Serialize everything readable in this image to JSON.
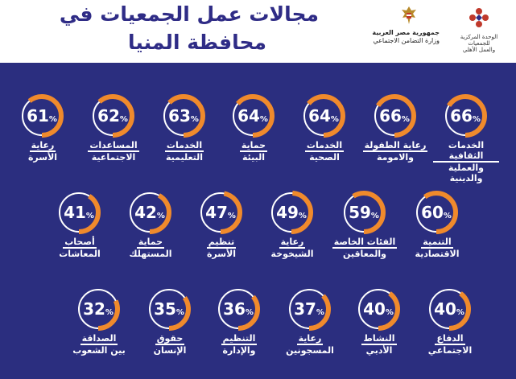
{
  "header": {
    "title_line1": "مجالات عمل الجمعيات في",
    "title_line2": "محافظة المنيا",
    "ministry_line1": "جمهورية مصر العربية",
    "ministry_line2": "وزارة التضامن الاجتماعي",
    "unit_line1": "الوحدة المركزية",
    "unit_line2": "للجمعيات",
    "unit_line3": "والعمل الأهلي"
  },
  "colors": {
    "panel": "#2b2e7f",
    "arc": "#f08a2c",
    "track": "#ffffff",
    "title": "#2f2c86"
  },
  "items": [
    {
      "value": 66,
      "pct": "66",
      "label1": "الخدمات الثقافية",
      "label2": "والعملية والدينية"
    },
    {
      "value": 66,
      "pct": "66",
      "label1": "رعاية الطفولة",
      "label2": "والامومة"
    },
    {
      "value": 64,
      "pct": "64",
      "label1": "الخدمات",
      "label2": "الصحية"
    },
    {
      "value": 64,
      "pct": "64",
      "label1": "حماية",
      "label2": "البيئة"
    },
    {
      "value": 63,
      "pct": "63",
      "label1": "الخدمات",
      "label2": "التعليمية"
    },
    {
      "value": 62,
      "pct": "62",
      "label1": "المساعدات",
      "label2": "الاجتماعية"
    },
    {
      "value": 61,
      "pct": "61",
      "label1": "رعاية",
      "label2": "الأسرة"
    },
    {
      "value": 60,
      "pct": "60",
      "label1": "التنمية",
      "label2": "الاقتصادية"
    },
    {
      "value": 59,
      "pct": "59",
      "label1": "الفئات الخاصة",
      "label2": "والمعاقين"
    },
    {
      "value": 49,
      "pct": "49",
      "label1": "رعاية",
      "label2": "الشيخوخة"
    },
    {
      "value": 47,
      "pct": "47",
      "label1": "تنظيم",
      "label2": "الأسرة"
    },
    {
      "value": 42,
      "pct": "42",
      "label1": "حماية",
      "label2": "المستهلك"
    },
    {
      "value": 41,
      "pct": "41",
      "label1": "أصحاب",
      "label2": "المعاشات"
    },
    {
      "value": 40,
      "pct": "40",
      "label1": "الدفاع",
      "label2": "الاجتماعي"
    },
    {
      "value": 40,
      "pct": "40",
      "label1": "النشاط",
      "label2": "الأدبي"
    },
    {
      "value": 37,
      "pct": "37",
      "label1": "رعاية",
      "label2": "المسجونين"
    },
    {
      "value": 36,
      "pct": "36",
      "label1": "التنظيم",
      "label2": "والإدارة"
    },
    {
      "value": 35,
      "pct": "35",
      "label1": "حقوق",
      "label2": "الإنسان"
    },
    {
      "value": 32,
      "pct": "32",
      "label1": "الصداقة",
      "label2": "بين الشعوب"
    }
  ],
  "pct_symbol": "%"
}
